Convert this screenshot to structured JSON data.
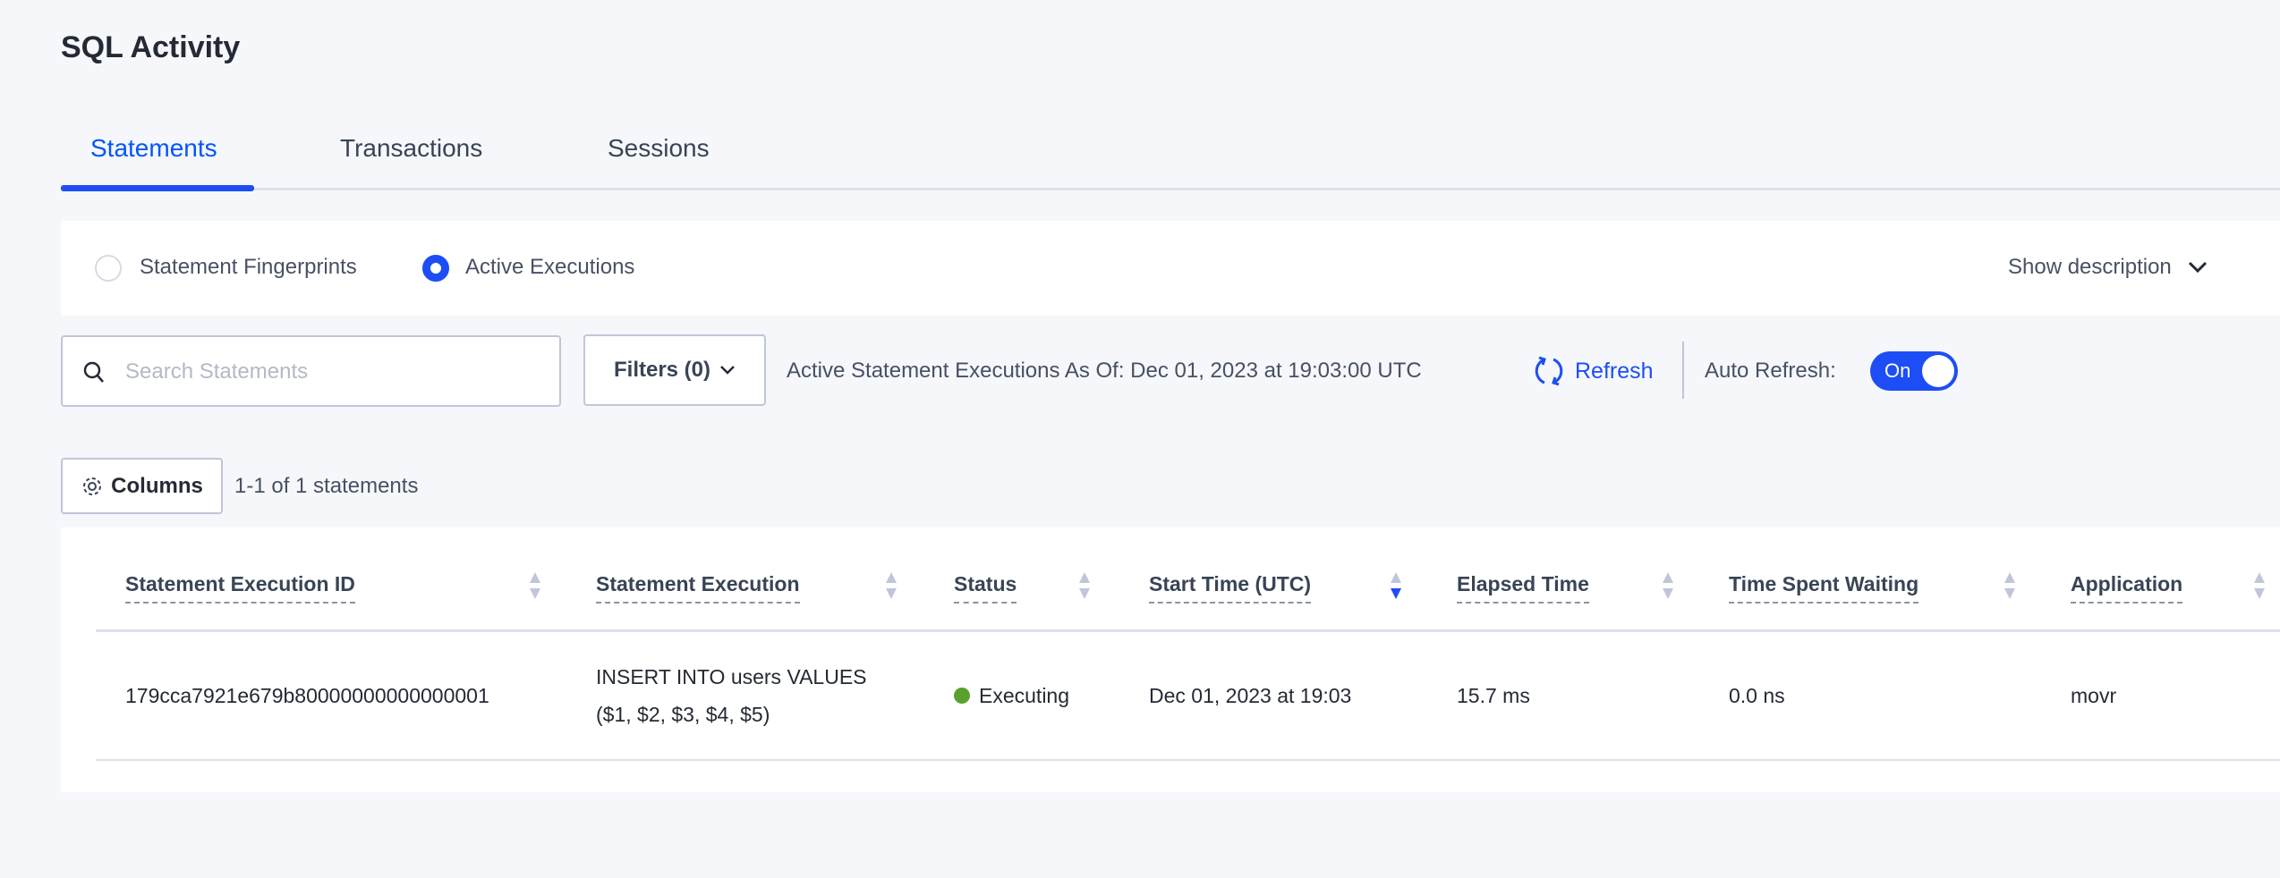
{
  "page_title": "SQL Activity",
  "tabs": [
    {
      "label": "Statements",
      "active": true
    },
    {
      "label": "Transactions",
      "active": false
    },
    {
      "label": "Sessions",
      "active": false
    }
  ],
  "view_toggle": {
    "options": [
      {
        "label": "Statement Fingerprints",
        "selected": false
      },
      {
        "label": "Active Executions",
        "selected": true
      }
    ],
    "show_description": "Show description"
  },
  "toolbar": {
    "search_placeholder": "Search Statements",
    "filters_label": "Filters (0)",
    "as_of_text": "Active Statement Executions As Of: Dec 01, 2023 at 19:03:00 UTC",
    "refresh_label": "Refresh",
    "auto_refresh_label": "Auto Refresh:",
    "auto_refresh_state": "On"
  },
  "columns_button": "Columns",
  "count_text": "1-1 of 1 statements",
  "table": {
    "headers": [
      "Statement Execution ID",
      "Statement Execution",
      "Status",
      "Start Time (UTC)",
      "Elapsed Time",
      "Time Spent Waiting",
      "Application"
    ],
    "sorted_column": "Start Time (UTC)",
    "sort_direction": "descending",
    "rows": [
      {
        "id": "179cca7921e679b80000000000000001",
        "statement_line1": "INSERT INTO users VALUES",
        "statement_line2": "($1, $2, $3, $4, $5)",
        "status": "Executing",
        "start_time": "Dec 01, 2023 at 19:03",
        "elapsed": "15.7 ms",
        "waiting": "0.0 ns",
        "application": "movr"
      }
    ]
  },
  "colors": {
    "accent": "#1d4ef5",
    "status_executing": "#5aa02c"
  }
}
